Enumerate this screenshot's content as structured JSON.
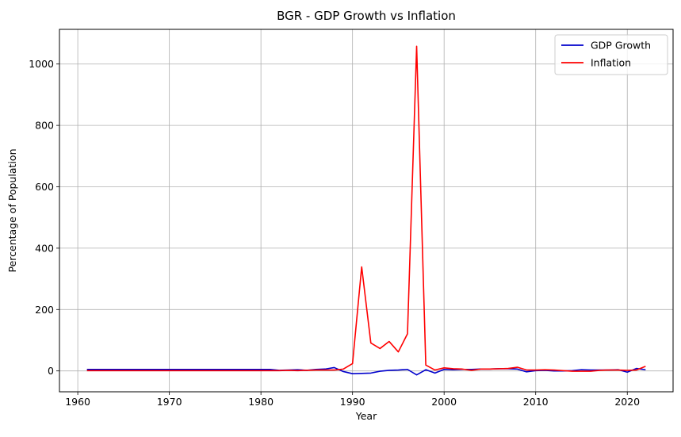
{
  "chart_data": {
    "type": "line",
    "title": "BGR - GDP Growth vs Inflation",
    "xlabel": "Year",
    "ylabel": "Percentage of Population",
    "xlim": [
      1958.0,
      2025.0
    ],
    "ylim": [
      -68,
      1113
    ],
    "x_ticks": [
      1960,
      1970,
      1980,
      1990,
      2000,
      2010,
      2020
    ],
    "y_ticks": [
      0,
      200,
      400,
      600,
      800,
      1000
    ],
    "grid": true,
    "legend_position": "top-right",
    "series": [
      {
        "name": "GDP Growth",
        "color": "#0000cc",
        "points": [
          [
            1961,
            5
          ],
          [
            1962,
            5
          ],
          [
            1963,
            5
          ],
          [
            1964,
            5
          ],
          [
            1965,
            5
          ],
          [
            1966,
            5
          ],
          [
            1967,
            5
          ],
          [
            1968,
            5
          ],
          [
            1969,
            5
          ],
          [
            1970,
            5
          ],
          [
            1971,
            5
          ],
          [
            1972,
            5
          ],
          [
            1973,
            5
          ],
          [
            1974,
            5
          ],
          [
            1975,
            5
          ],
          [
            1976,
            5
          ],
          [
            1977,
            5
          ],
          [
            1978,
            5
          ],
          [
            1979,
            5
          ],
          [
            1980,
            5
          ],
          [
            1981,
            5
          ],
          [
            1982,
            2
          ],
          [
            1983,
            3
          ],
          [
            1984,
            4
          ],
          [
            1985,
            2
          ],
          [
            1986,
            5
          ],
          [
            1987,
            6
          ],
          [
            1988,
            11
          ],
          [
            1989,
            -2
          ],
          [
            1990,
            -9
          ],
          [
            1991,
            -8
          ],
          [
            1992,
            -7
          ],
          [
            1993,
            -1
          ],
          [
            1994,
            2
          ],
          [
            1995,
            3
          ],
          [
            1996,
            5
          ],
          [
            1997,
            -13
          ],
          [
            1998,
            4
          ],
          [
            1999,
            -7
          ],
          [
            2000,
            5
          ],
          [
            2001,
            4
          ],
          [
            2002,
            5
          ],
          [
            2003,
            5
          ],
          [
            2004,
            6
          ],
          [
            2005,
            6
          ],
          [
            2006,
            7
          ],
          [
            2007,
            7
          ],
          [
            2008,
            6
          ],
          [
            2009,
            -3
          ],
          [
            2010,
            1
          ],
          [
            2011,
            2
          ],
          [
            2012,
            0
          ],
          [
            2013,
            0
          ],
          [
            2014,
            1
          ],
          [
            2015,
            4
          ],
          [
            2016,
            3
          ],
          [
            2017,
            3
          ],
          [
            2018,
            3
          ],
          [
            2019,
            4
          ],
          [
            2020,
            -4
          ],
          [
            2021,
            8
          ],
          [
            2022,
            4
          ]
        ]
      },
      {
        "name": "Inflation",
        "color": "#ff0000",
        "points": [
          [
            1961,
            1
          ],
          [
            1962,
            1
          ],
          [
            1963,
            1
          ],
          [
            1964,
            1
          ],
          [
            1965,
            1
          ],
          [
            1966,
            1
          ],
          [
            1967,
            1
          ],
          [
            1968,
            1
          ],
          [
            1969,
            1
          ],
          [
            1970,
            1
          ],
          [
            1971,
            1
          ],
          [
            1972,
            1
          ],
          [
            1973,
            1
          ],
          [
            1974,
            1
          ],
          [
            1975,
            1
          ],
          [
            1976,
            1
          ],
          [
            1977,
            1
          ],
          [
            1978,
            1
          ],
          [
            1979,
            1
          ],
          [
            1980,
            1
          ],
          [
            1981,
            1
          ],
          [
            1982,
            1
          ],
          [
            1983,
            2
          ],
          [
            1984,
            1
          ],
          [
            1985,
            2
          ],
          [
            1986,
            3
          ],
          [
            1987,
            3
          ],
          [
            1988,
            3
          ],
          [
            1989,
            6
          ],
          [
            1990,
            24
          ],
          [
            1991,
            339
          ],
          [
            1992,
            91
          ],
          [
            1993,
            73
          ],
          [
            1994,
            96
          ],
          [
            1995,
            62
          ],
          [
            1996,
            121
          ],
          [
            1997,
            1058
          ],
          [
            1998,
            19
          ],
          [
            1999,
            3
          ],
          [
            2000,
            10
          ],
          [
            2001,
            7
          ],
          [
            2002,
            6
          ],
          [
            2003,
            2
          ],
          [
            2004,
            6
          ],
          [
            2005,
            6
          ],
          [
            2006,
            7
          ],
          [
            2007,
            8
          ],
          [
            2008,
            12
          ],
          [
            2009,
            3
          ],
          [
            2010,
            3
          ],
          [
            2011,
            4
          ],
          [
            2012,
            3
          ],
          [
            2013,
            1
          ],
          [
            2014,
            -1
          ],
          [
            2015,
            -1
          ],
          [
            2016,
            -1
          ],
          [
            2017,
            2
          ],
          [
            2018,
            3
          ],
          [
            2019,
            3
          ],
          [
            2020,
            2
          ],
          [
            2021,
            3
          ],
          [
            2022,
            15
          ]
        ]
      }
    ]
  }
}
